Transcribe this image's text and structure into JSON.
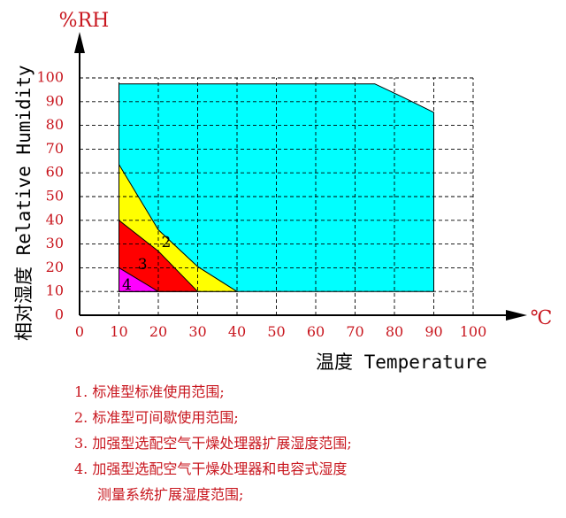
{
  "chart_data": {
    "type": "area",
    "y_unit": "%RH",
    "ylabel": "相对湿度 Relative Humidity",
    "x_unit": "℃",
    "xlabel": "温度 Temperature",
    "xlim": [
      0,
      100
    ],
    "ylim": [
      0,
      100
    ],
    "x_ticks": [
      0,
      10,
      20,
      30,
      40,
      50,
      60,
      70,
      80,
      90,
      100
    ],
    "y_ticks": [
      0,
      10,
      20,
      30,
      40,
      50,
      60,
      70,
      80,
      90,
      100
    ],
    "grid": true,
    "regions": [
      {
        "id": "1",
        "color": "#00ffff",
        "polygon": [
          [
            10,
            10
          ],
          [
            10,
            97.5
          ],
          [
            75,
            97.5
          ],
          [
            82,
            92
          ],
          [
            90,
            85.5
          ],
          [
            90,
            10
          ]
        ]
      },
      {
        "id": "2",
        "label": "2",
        "label_at": [
          22,
          30.5
        ],
        "color": "#ffff00",
        "polygon": [
          [
            10,
            10
          ],
          [
            10,
            63.5
          ],
          [
            20,
            36
          ],
          [
            30,
            20.5
          ],
          [
            40,
            10
          ]
        ]
      },
      {
        "id": "3",
        "label": "3",
        "label_at": [
          16,
          21
        ],
        "color": "#ff0000",
        "polygon": [
          [
            10,
            10
          ],
          [
            10,
            40
          ],
          [
            20,
            27
          ],
          [
            30,
            10
          ]
        ]
      },
      {
        "id": "4",
        "label": "4",
        "label_at": [
          12,
          12.5
        ],
        "color": "#ff00ff",
        "polygon": [
          [
            10,
            10
          ],
          [
            10,
            20
          ],
          [
            20,
            10
          ]
        ]
      }
    ]
  },
  "notes": [
    "1. 标准型标准使用范围;",
    "2. 标准型可间歇使用范围;",
    "3. 加强型选配空气干燥处理器扩展湿度范围;",
    "4. 加强型选配空气干燥处理器和电容式湿度",
    "测量系统扩展湿度范围;"
  ]
}
